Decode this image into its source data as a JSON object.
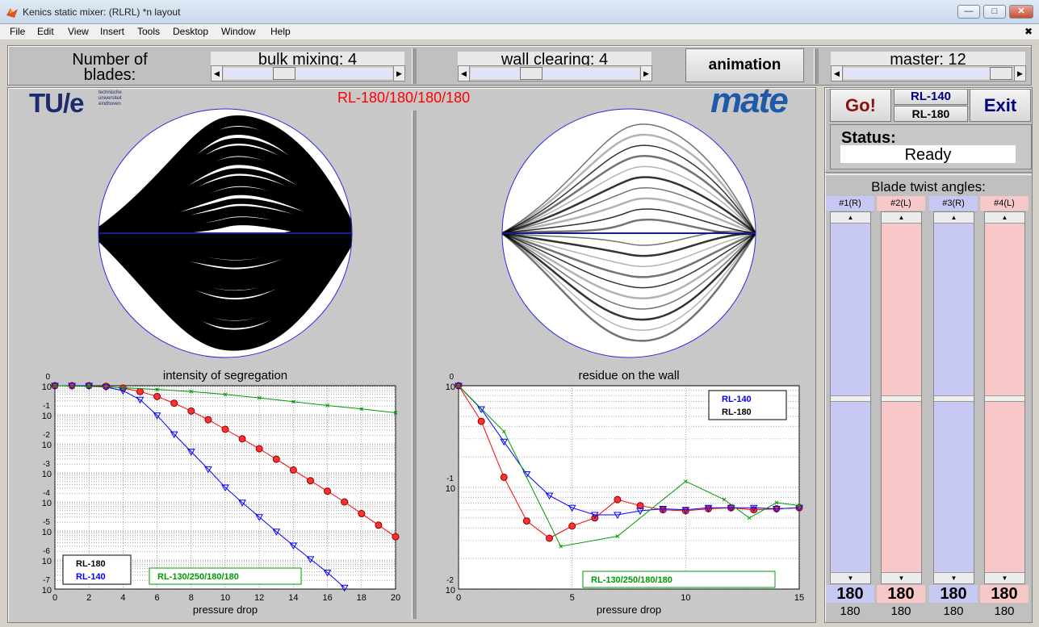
{
  "window": {
    "title": "Kenics static mixer:  (RLRL) *n  layout",
    "min": "—",
    "max": "□",
    "close": "✕"
  },
  "menu": [
    "File",
    "Edit",
    "View",
    "Insert",
    "Tools",
    "Desktop",
    "Window",
    "Help"
  ],
  "menu_close": "✖",
  "controls": {
    "number_of_blades": "Number of blades:",
    "bulk_mixing": "bulk mixing: 4",
    "wall_clearing": "wall clearing: 4",
    "animation": "animation",
    "master": "master: 12",
    "go": "Go!",
    "rl140": "RL-140",
    "rl180": "RL-180",
    "exit": "Exit",
    "status_label": "Status:",
    "status_value": "Ready",
    "blade_twist": "Blade twist angles:"
  },
  "logo_tue": "TU/e",
  "logo_tue_sub": "technische universiteit eindhoven",
  "logo_mate": "mate",
  "layout_label": "RL-180/180/180/180",
  "blades": [
    {
      "label": "#1(R)",
      "value": "180",
      "sub": "180",
      "color": "#c8c8f5",
      "level": 0.5
    },
    {
      "label": "#2(L)",
      "value": "180",
      "sub": "180",
      "color": "#f8c8c8",
      "level": 0.5
    },
    {
      "label": "#3(R)",
      "value": "180",
      "sub": "180",
      "color": "#c8c8f5",
      "level": 0.5
    },
    {
      "label": "#4(L)",
      "value": "180",
      "sub": "180",
      "color": "#f8c8c8",
      "level": 0.5
    }
  ],
  "colors": {
    "red": "#ff0000",
    "blue": "#0000ff",
    "green": "#009900"
  },
  "chart_data": [
    {
      "type": "line",
      "title": "intensity of segregation",
      "xlabel": "pressure drop",
      "ylabel": "",
      "yscale": "log",
      "xlim": [
        0,
        20
      ],
      "ylim_exp": [
        -7,
        0
      ],
      "xticks": [
        "0",
        "2",
        "4",
        "6",
        "8",
        "10",
        "12",
        "14",
        "16",
        "18",
        "20"
      ],
      "yticks": [
        {
          "base": "10",
          "exp": "0"
        },
        {
          "base": "10",
          "exp": "-1"
        },
        {
          "base": "10",
          "exp": "-2"
        },
        {
          "base": "10",
          "exp": "-3"
        },
        {
          "base": "10",
          "exp": "-4"
        },
        {
          "base": "10",
          "exp": "-5"
        },
        {
          "base": "10",
          "exp": "-6"
        },
        {
          "base": "10",
          "exp": "-7"
        }
      ],
      "legend": [
        "RL-180",
        "RL-140"
      ],
      "legend2": "RL-130/250/180/180",
      "series": [
        {
          "name": "RL-180",
          "color": "#ff0000",
          "marker": "circle",
          "x": [
            0,
            1,
            2,
            3,
            4,
            5,
            6,
            7,
            8,
            9,
            10,
            11,
            12,
            13,
            14,
            15,
            16,
            17,
            18,
            19,
            20
          ],
          "logy": [
            0,
            0,
            0,
            -0.02,
            -0.08,
            -0.2,
            -0.37,
            -0.6,
            -0.87,
            -1.17,
            -1.5,
            -1.83,
            -2.17,
            -2.53,
            -2.9,
            -3.27,
            -3.63,
            -4.0,
            -4.4,
            -4.8,
            -5.2
          ]
        },
        {
          "name": "RL-140",
          "color": "#0000ff",
          "marker": "triangle",
          "x": [
            0,
            1,
            2,
            3,
            4,
            5,
            6,
            7,
            8,
            9,
            10,
            11,
            12,
            13,
            14,
            15,
            16,
            17
          ],
          "logy": [
            0,
            0,
            0,
            -0.05,
            -0.17,
            -0.48,
            -1.02,
            -1.67,
            -2.27,
            -2.87,
            -3.5,
            -4.02,
            -4.52,
            -5.02,
            -5.5,
            -5.97,
            -6.43,
            -6.95
          ]
        },
        {
          "name": "RL-130/250/180/180",
          "color": "#009900",
          "marker": "x",
          "x": [
            0,
            2,
            4,
            6,
            8,
            10,
            12,
            14,
            16,
            18,
            20
          ],
          "logy": [
            0,
            -0.02,
            -0.07,
            -0.13,
            -0.2,
            -0.3,
            -0.42,
            -0.55,
            -0.68,
            -0.8,
            -0.93
          ]
        }
      ]
    },
    {
      "type": "line",
      "title": "residue on the wall",
      "xlabel": "pressure drop",
      "ylabel": "",
      "yscale": "log",
      "xlim": [
        0,
        15
      ],
      "ylim_exp": [
        -2,
        0
      ],
      "xticks": [
        "0",
        "5",
        "10",
        "15"
      ],
      "yticks": [
        {
          "base": "10",
          "exp": "0"
        },
        {
          "base": "10",
          "exp": "-1"
        },
        {
          "base": "10",
          "exp": "-2"
        }
      ],
      "legend": [
        "RL-140",
        "RL-180"
      ],
      "legend2": "RL-130/250/180/180",
      "series": [
        {
          "name": "RL-180",
          "color": "#ff0000",
          "marker": "circle",
          "x": [
            0,
            1,
            2,
            3,
            4,
            5,
            6,
            7,
            8,
            9,
            10,
            11,
            12,
            13,
            14,
            15
          ],
          "logy": [
            0,
            -0.35,
            -0.9,
            -1.33,
            -1.5,
            -1.38,
            -1.3,
            -1.12,
            -1.18,
            -1.22,
            -1.23,
            -1.21,
            -1.2,
            -1.22,
            -1.21,
            -1.2
          ]
        },
        {
          "name": "RL-140",
          "color": "#0000ff",
          "marker": "triangle",
          "x": [
            0,
            1,
            2,
            3,
            4,
            5,
            6,
            7,
            8,
            9,
            10,
            11,
            12,
            13,
            14,
            15
          ],
          "logy": [
            0,
            -0.23,
            -0.55,
            -0.87,
            -1.08,
            -1.2,
            -1.27,
            -1.27,
            -1.23,
            -1.21,
            -1.22,
            -1.2,
            -1.2,
            -1.2,
            -1.21,
            -1.2
          ]
        },
        {
          "name": "RL-130/250/180/180",
          "color": "#009900",
          "marker": "x",
          "x": [
            0,
            2,
            4.5,
            7,
            10,
            11.7,
            12.8,
            14,
            15
          ],
          "logy": [
            0,
            -0.45,
            -1.58,
            -1.48,
            -0.94,
            -1.12,
            -1.3,
            -1.15,
            -1.18
          ]
        }
      ]
    }
  ]
}
